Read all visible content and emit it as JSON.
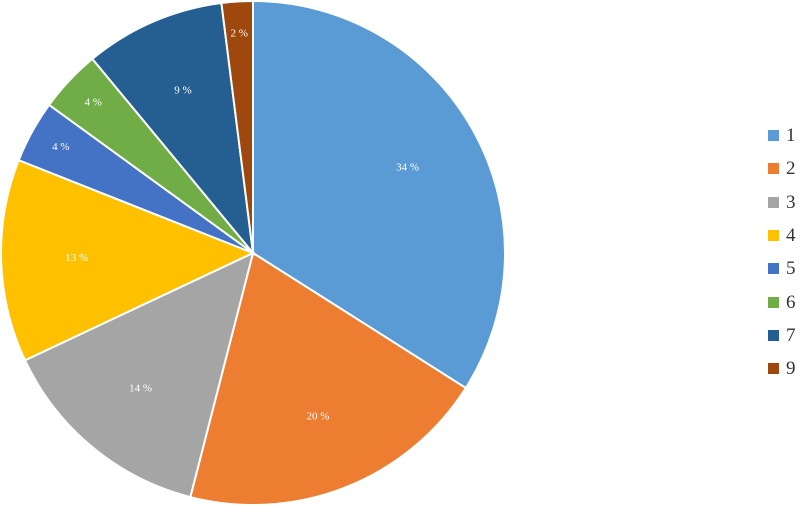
{
  "chart_data": {
    "type": "pie",
    "title": "",
    "start_angle_deg": 0,
    "direction": "clockwise",
    "legend_position": "right",
    "slices": [
      {
        "label": "1",
        "value": 34,
        "data_label": "34 %",
        "color": "#5B9BD5"
      },
      {
        "label": "2",
        "value": 20,
        "data_label": "20 %",
        "color": "#ED7D31"
      },
      {
        "label": "3",
        "value": 14,
        "data_label": "14 %",
        "color": "#A5A5A5"
      },
      {
        "label": "4",
        "value": 13,
        "data_label": "13 %",
        "color": "#FFC000"
      },
      {
        "label": "5",
        "value": 4,
        "data_label": "4 %",
        "color": "#4472C4"
      },
      {
        "label": "6",
        "value": 4,
        "data_label": "4 %",
        "color": "#70AD47"
      },
      {
        "label": "7",
        "value": 9,
        "data_label": "9 %",
        "color": "#255E91"
      },
      {
        "label": "9",
        "value": 2,
        "data_label": "2 %",
        "color": "#9E480E"
      }
    ]
  }
}
